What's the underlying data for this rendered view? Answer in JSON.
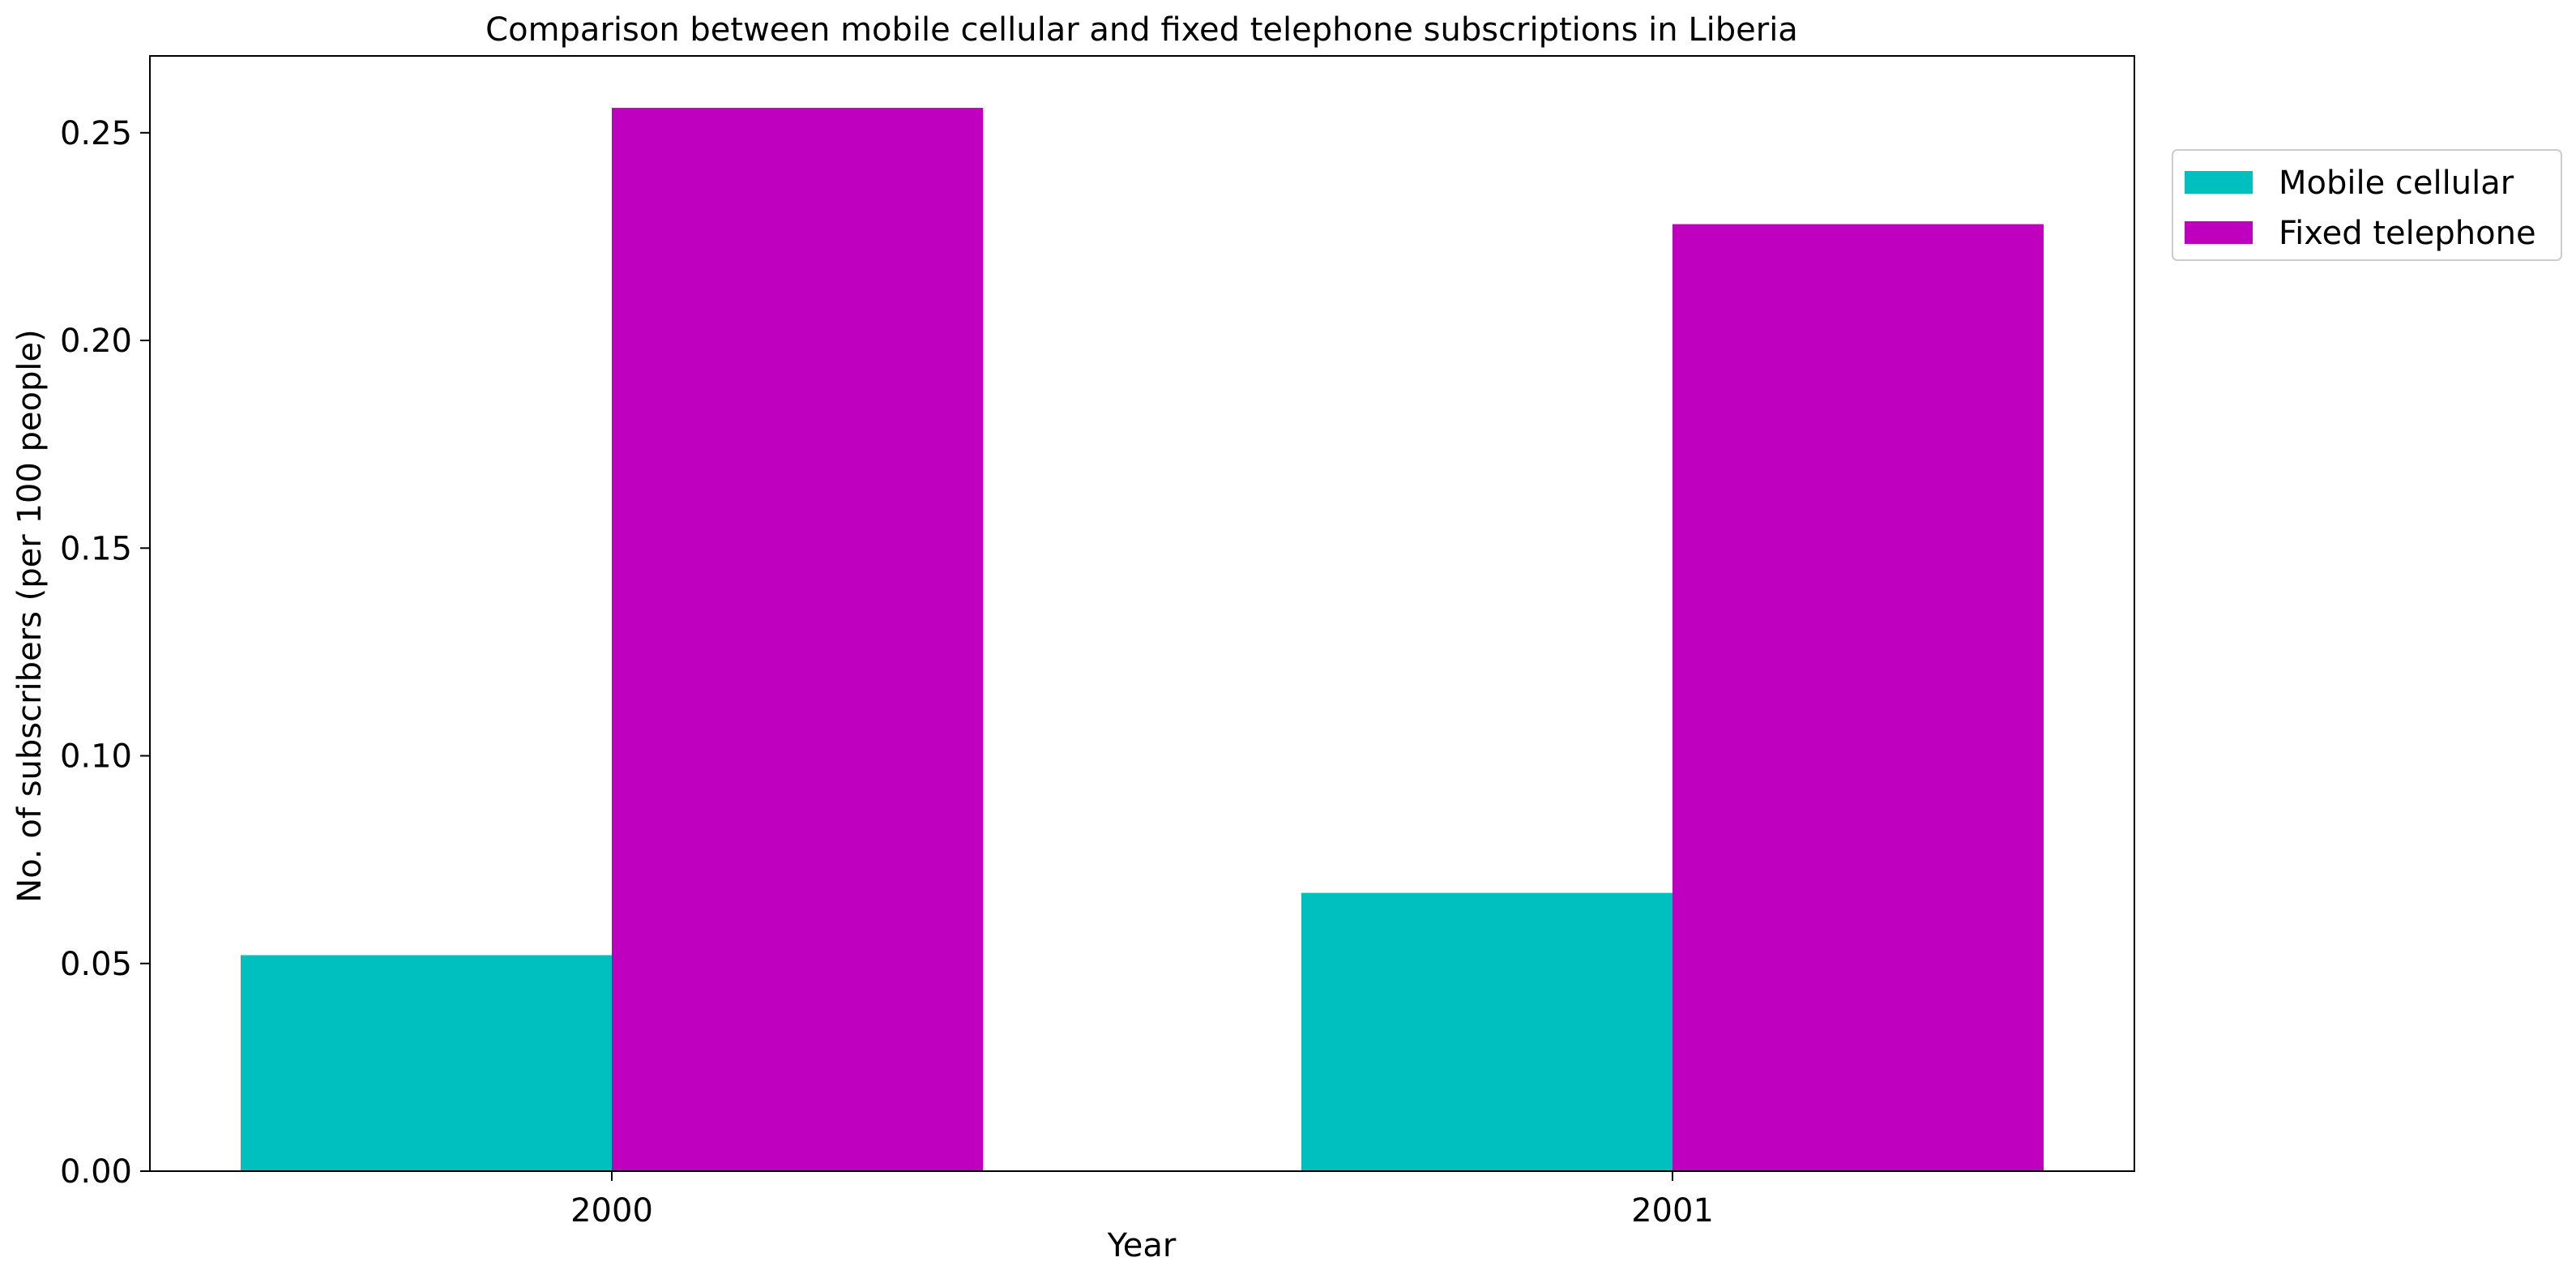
{
  "chart_data": {
    "type": "bar",
    "title": "Comparison between mobile cellular and fixed telephone subscriptions in Liberia",
    "xlabel": "Year",
    "ylabel": "No. of subscribers (per 100 people)",
    "categories": [
      "2000",
      "2001"
    ],
    "series": [
      {
        "name": "Mobile cellular",
        "color": "#00bfbf",
        "values": [
          0.052,
          0.067
        ]
      },
      {
        "name": "Fixed telephone",
        "color": "#bf00bf",
        "values": [
          0.256,
          0.228
        ]
      }
    ],
    "ylim": [
      0,
      0.2685
    ],
    "yticks": [
      "0.00",
      "0.05",
      "0.10",
      "0.15",
      "0.20",
      "0.25"
    ],
    "grid": false,
    "legend_position": "outside top-right"
  }
}
